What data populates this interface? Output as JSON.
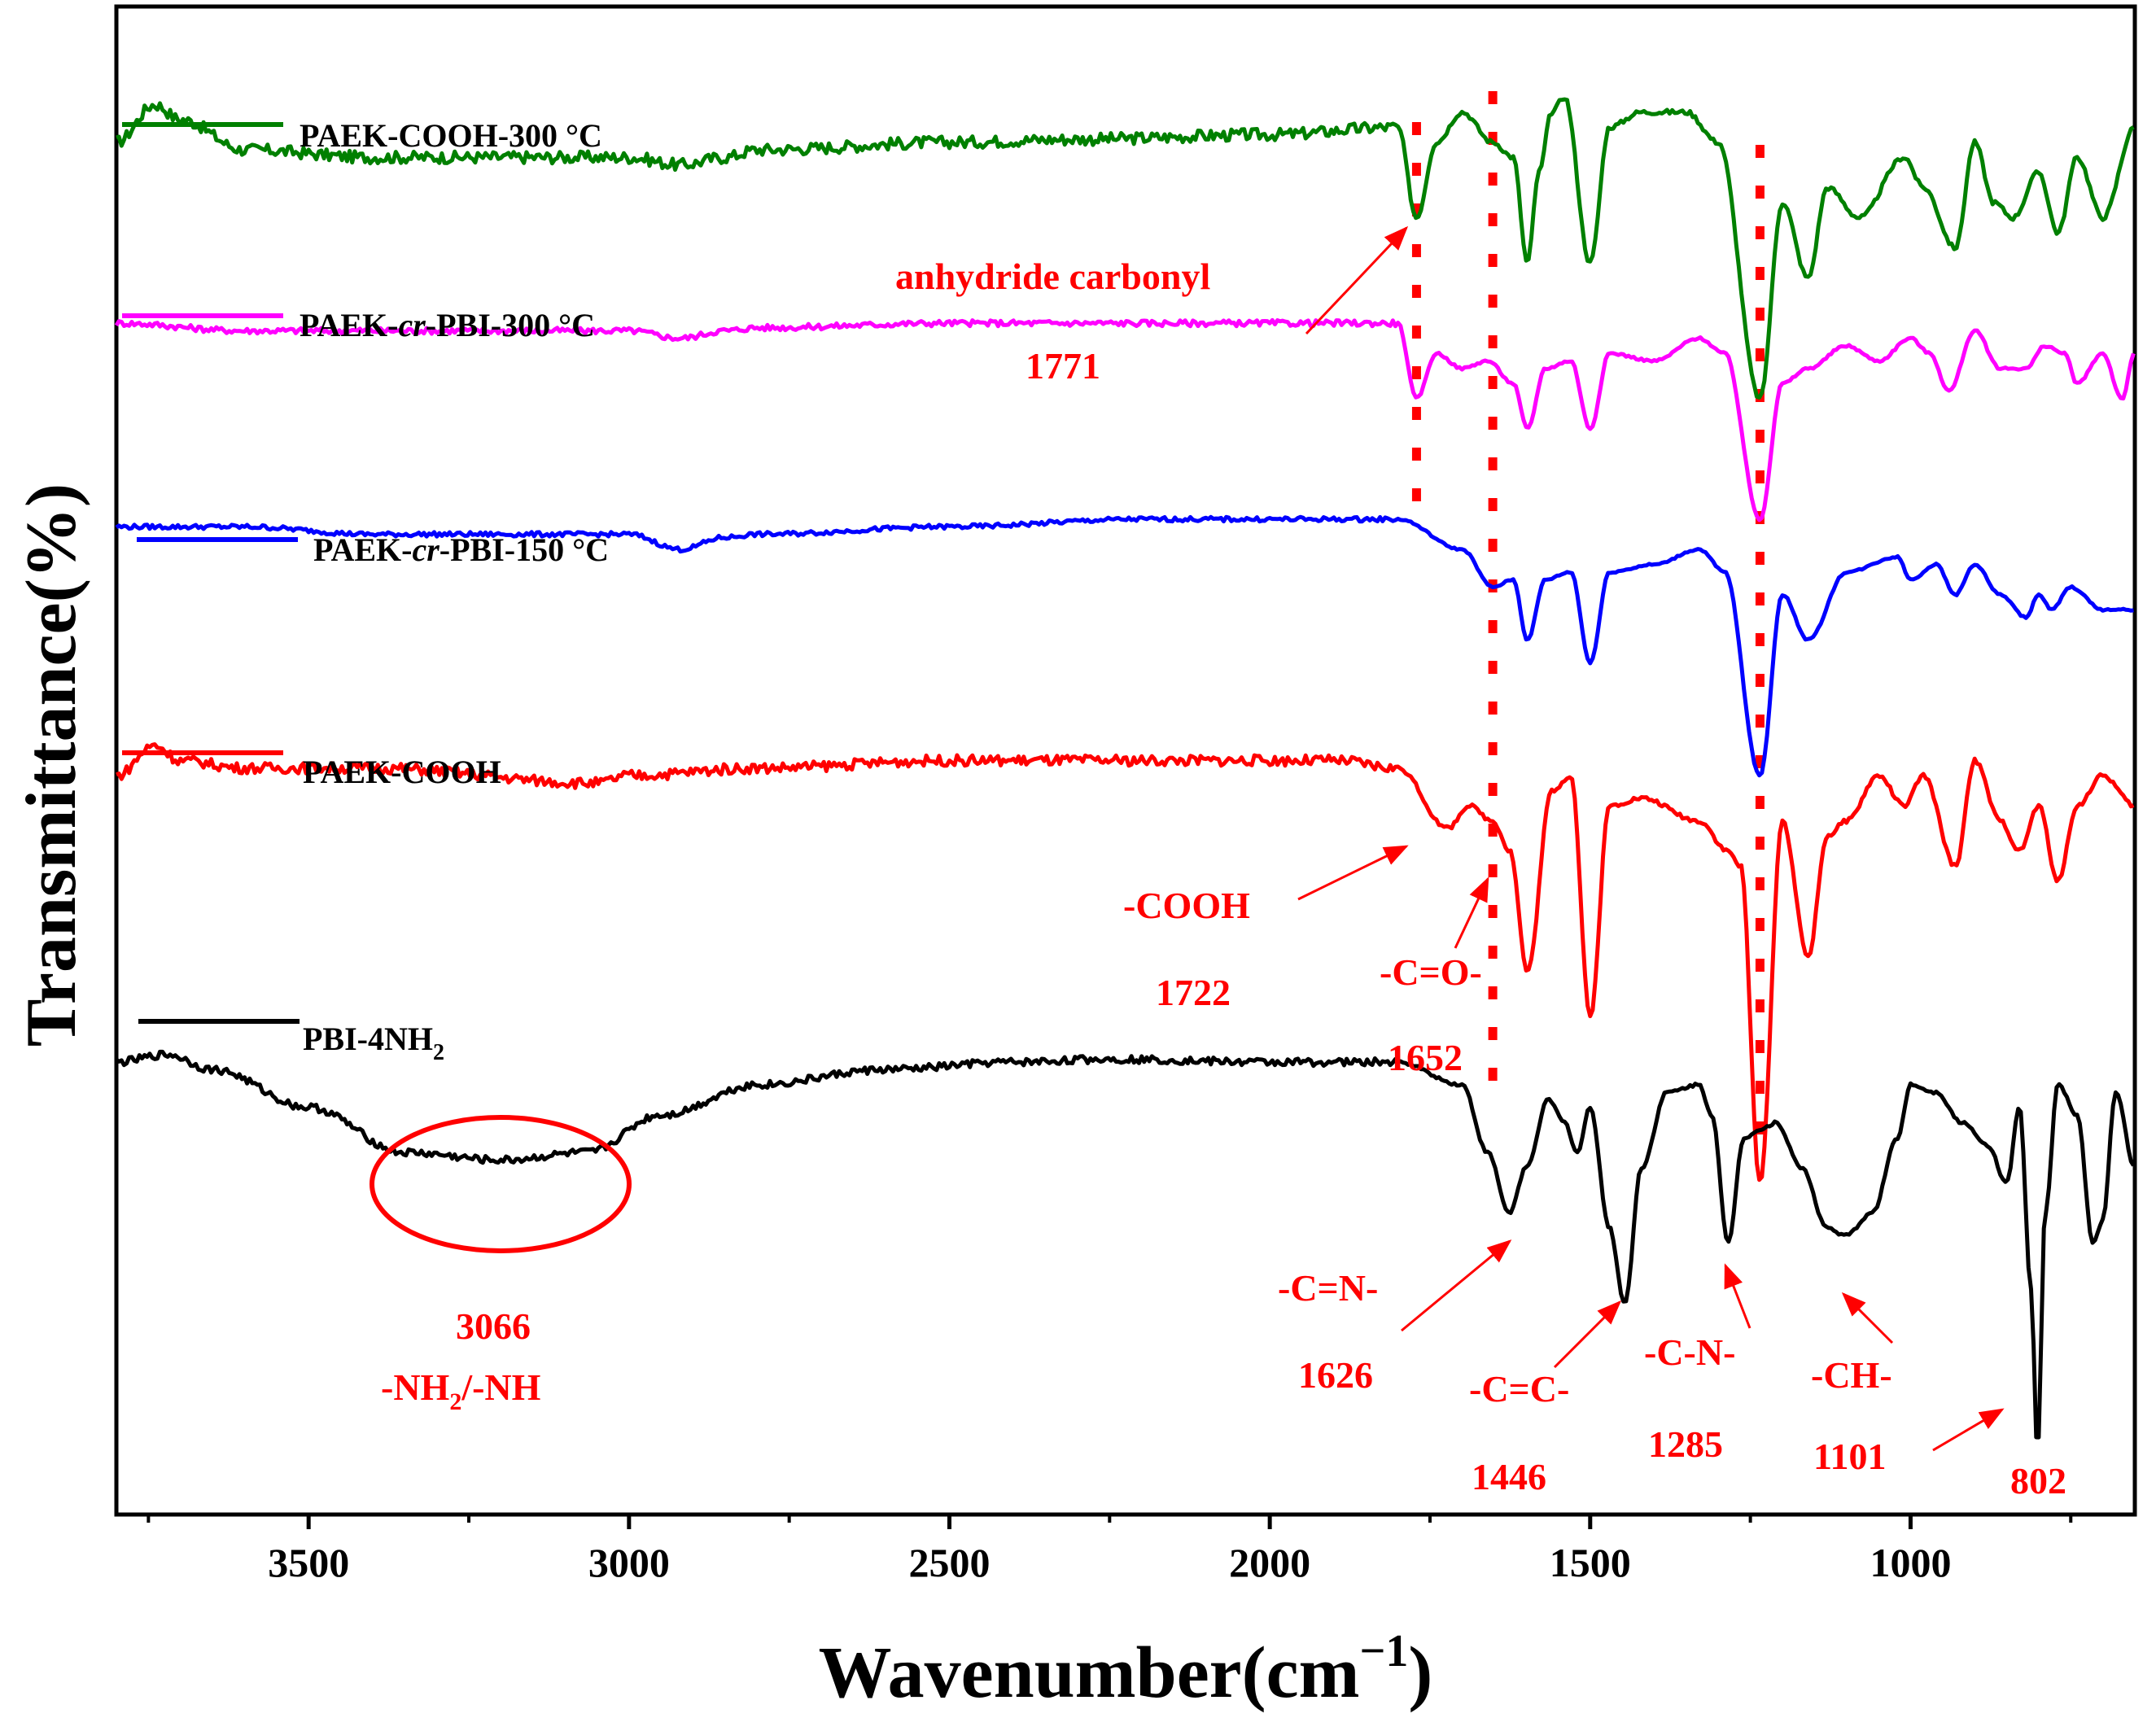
{
  "chart_data": {
    "type": "line",
    "title": "",
    "xlabel": "Wavenumber(cm",
    "xlabel_sup": "−1",
    "xlabel_close": ")",
    "ylabel": "Transmittance(%)",
    "xlim": [
      3800,
      650
    ],
    "x_reversed": true,
    "yticks_shown": false,
    "xticks": [
      3500,
      3000,
      2500,
      2000,
      1500,
      1000
    ],
    "series": [
      {
        "name": "PAEK-COOH-300 °C",
        "label_main": "PAEK-COOH-300 °C",
        "color": "#008000",
        "baseline": 0.92,
        "noise": 0.008,
        "points": [
          [
            3800,
            0.91
          ],
          [
            3740,
            0.935
          ],
          [
            3700,
            0.925
          ],
          [
            3600,
            0.905
          ],
          [
            3400,
            0.9
          ],
          [
            3200,
            0.9
          ],
          [
            3000,
            0.9
          ],
          [
            2920,
            0.895
          ],
          [
            2850,
            0.9
          ],
          [
            2800,
            0.905
          ],
          [
            2500,
            0.91
          ],
          [
            2300,
            0.912
          ],
          [
            2000,
            0.915
          ],
          [
            1800,
            0.92
          ],
          [
            1771,
            0.86
          ],
          [
            1740,
            0.91
          ],
          [
            1700,
            0.93
          ],
          [
            1652,
            0.91
          ],
          [
            1620,
            0.9
          ],
          [
            1598,
            0.83
          ],
          [
            1580,
            0.89
          ],
          [
            1560,
            0.93
          ],
          [
            1540,
            0.94
          ],
          [
            1500,
            0.83
          ],
          [
            1470,
            0.92
          ],
          [
            1420,
            0.93
          ],
          [
            1350,
            0.93
          ],
          [
            1300,
            0.91
          ],
          [
            1235,
            0.74
          ],
          [
            1200,
            0.87
          ],
          [
            1160,
            0.82
          ],
          [
            1130,
            0.88
          ],
          [
            1080,
            0.86
          ],
          [
            1010,
            0.9
          ],
          [
            980,
            0.88
          ],
          [
            930,
            0.84
          ],
          [
            900,
            0.91
          ],
          [
            870,
            0.87
          ],
          [
            840,
            0.86
          ],
          [
            800,
            0.89
          ],
          [
            770,
            0.85
          ],
          [
            740,
            0.9
          ],
          [
            700,
            0.86
          ],
          [
            650,
            0.92
          ]
        ]
      },
      {
        "name": "PAEK-cr-PBI-300 °C",
        "label_pre": "PAEK-",
        "label_it": "cr",
        "label_post": "-PBI-300 °C",
        "color": "#ff00ff",
        "baseline": 0.8,
        "noise": 0.004,
        "points": [
          [
            3800,
            0.79
          ],
          [
            3600,
            0.785
          ],
          [
            3400,
            0.785
          ],
          [
            3200,
            0.785
          ],
          [
            3000,
            0.785
          ],
          [
            2920,
            0.78
          ],
          [
            2850,
            0.785
          ],
          [
            2800,
            0.787
          ],
          [
            2500,
            0.79
          ],
          [
            2200,
            0.79
          ],
          [
            1900,
            0.79
          ],
          [
            1800,
            0.79
          ],
          [
            1771,
            0.74
          ],
          [
            1740,
            0.77
          ],
          [
            1700,
            0.76
          ],
          [
            1660,
            0.765
          ],
          [
            1620,
            0.75
          ],
          [
            1598,
            0.72
          ],
          [
            1570,
            0.76
          ],
          [
            1530,
            0.765
          ],
          [
            1500,
            0.72
          ],
          [
            1470,
            0.77
          ],
          [
            1400,
            0.765
          ],
          [
            1330,
            0.78
          ],
          [
            1290,
            0.77
          ],
          [
            1235,
            0.66
          ],
          [
            1200,
            0.75
          ],
          [
            1160,
            0.76
          ],
          [
            1100,
            0.775
          ],
          [
            1050,
            0.765
          ],
          [
            1000,
            0.78
          ],
          [
            970,
            0.77
          ],
          [
            940,
            0.745
          ],
          [
            900,
            0.785
          ],
          [
            860,
            0.76
          ],
          [
            820,
            0.76
          ],
          [
            790,
            0.775
          ],
          [
            760,
            0.77
          ],
          [
            740,
            0.75
          ],
          [
            700,
            0.77
          ],
          [
            670,
            0.74
          ],
          [
            650,
            0.77
          ]
        ]
      },
      {
        "name": "PAEK-cr-PBI-150 °C",
        "label_pre": "PAEK-",
        "label_it": "cr",
        "label_post": "-PBI-150 °C",
        "color": "#0000ff",
        "baseline": 0.66,
        "noise": 0.003,
        "points": [
          [
            3800,
            0.655
          ],
          [
            3600,
            0.655
          ],
          [
            3400,
            0.65
          ],
          [
            3000,
            0.65
          ],
          [
            2920,
            0.64
          ],
          [
            2850,
            0.648
          ],
          [
            2800,
            0.65
          ],
          [
            2500,
            0.655
          ],
          [
            2200,
            0.66
          ],
          [
            1900,
            0.66
          ],
          [
            1800,
            0.66
          ],
          [
            1700,
            0.64
          ],
          [
            1652,
            0.615
          ],
          [
            1620,
            0.62
          ],
          [
            1598,
            0.58
          ],
          [
            1570,
            0.62
          ],
          [
            1530,
            0.625
          ],
          [
            1500,
            0.565
          ],
          [
            1470,
            0.625
          ],
          [
            1400,
            0.63
          ],
          [
            1330,
            0.64
          ],
          [
            1290,
            0.625
          ],
          [
            1235,
            0.49
          ],
          [
            1200,
            0.61
          ],
          [
            1160,
            0.58
          ],
          [
            1100,
            0.625
          ],
          [
            1020,
            0.635
          ],
          [
            1000,
            0.62
          ],
          [
            960,
            0.63
          ],
          [
            930,
            0.61
          ],
          [
            900,
            0.63
          ],
          [
            860,
            0.61
          ],
          [
            820,
            0.595
          ],
          [
            800,
            0.61
          ],
          [
            780,
            0.6
          ],
          [
            750,
            0.615
          ],
          [
            700,
            0.6
          ],
          [
            650,
            0.6
          ]
        ]
      },
      {
        "name": "PAEK-COOH",
        "label_main": "PAEK-COOH",
        "color": "#ff0000",
        "baseline": 0.5,
        "noise": 0.007,
        "points": [
          [
            3800,
            0.49
          ],
          [
            3740,
            0.51
          ],
          [
            3700,
            0.5
          ],
          [
            3600,
            0.495
          ],
          [
            3400,
            0.495
          ],
          [
            3050,
            0.485
          ],
          [
            3000,
            0.49
          ],
          [
            2800,
            0.495
          ],
          [
            2500,
            0.5
          ],
          [
            2200,
            0.5
          ],
          [
            1900,
            0.5
          ],
          [
            1800,
            0.495
          ],
          [
            1722,
            0.455
          ],
          [
            1690,
            0.47
          ],
          [
            1652,
            0.46
          ],
          [
            1625,
            0.44
          ],
          [
            1598,
            0.36
          ],
          [
            1560,
            0.48
          ],
          [
            1530,
            0.49
          ],
          [
            1500,
            0.33
          ],
          [
            1470,
            0.47
          ],
          [
            1420,
            0.475
          ],
          [
            1330,
            0.46
          ],
          [
            1285,
            0.44
          ],
          [
            1265,
            0.43
          ],
          [
            1235,
            0.22
          ],
          [
            1200,
            0.46
          ],
          [
            1160,
            0.37
          ],
          [
            1130,
            0.45
          ],
          [
            1100,
            0.46
          ],
          [
            1050,
            0.49
          ],
          [
            1010,
            0.47
          ],
          [
            980,
            0.49
          ],
          [
            930,
            0.43
          ],
          [
            900,
            0.5
          ],
          [
            860,
            0.46
          ],
          [
            830,
            0.44
          ],
          [
            800,
            0.47
          ],
          [
            770,
            0.42
          ],
          [
            740,
            0.47
          ],
          [
            700,
            0.49
          ],
          [
            650,
            0.47
          ]
        ]
      },
      {
        "name": "PBI-4NH2",
        "label_main": "PBI-4NH",
        "label_sub": "2",
        "color": "#000000",
        "baseline": 0.3,
        "noise": 0.005,
        "points": [
          [
            3800,
            0.3
          ],
          [
            3720,
            0.305
          ],
          [
            3650,
            0.295
          ],
          [
            3500,
            0.27
          ],
          [
            3350,
            0.24
          ],
          [
            3200,
            0.235
          ],
          [
            3066,
            0.24
          ],
          [
            2950,
            0.265
          ],
          [
            2800,
            0.285
          ],
          [
            2600,
            0.295
          ],
          [
            2400,
            0.3
          ],
          [
            2250,
            0.302
          ],
          [
            2000,
            0.3
          ],
          [
            1800,
            0.3
          ],
          [
            1700,
            0.285
          ],
          [
            1660,
            0.24
          ],
          [
            1626,
            0.2
          ],
          [
            1600,
            0.23
          ],
          [
            1565,
            0.275
          ],
          [
            1540,
            0.26
          ],
          [
            1520,
            0.24
          ],
          [
            1500,
            0.27
          ],
          [
            1470,
            0.19
          ],
          [
            1446,
            0.14
          ],
          [
            1420,
            0.23
          ],
          [
            1380,
            0.28
          ],
          [
            1330,
            0.285
          ],
          [
            1310,
            0.265
          ],
          [
            1285,
            0.18
          ],
          [
            1260,
            0.25
          ],
          [
            1235,
            0.255
          ],
          [
            1210,
            0.26
          ],
          [
            1170,
            0.23
          ],
          [
            1130,
            0.19
          ],
          [
            1101,
            0.185
          ],
          [
            1060,
            0.2
          ],
          [
            1020,
            0.25
          ],
          [
            1000,
            0.285
          ],
          [
            960,
            0.28
          ],
          [
            920,
            0.26
          ],
          [
            880,
            0.245
          ],
          [
            850,
            0.22
          ],
          [
            830,
            0.27
          ],
          [
            812,
            0.15
          ],
          [
            802,
            0.04
          ],
          [
            790,
            0.2
          ],
          [
            770,
            0.285
          ],
          [
            740,
            0.265
          ],
          [
            715,
            0.18
          ],
          [
            700,
            0.195
          ],
          [
            680,
            0.28
          ],
          [
            650,
            0.23
          ]
        ]
      }
    ],
    "guide_lines": [
      1771,
      1652,
      1235
    ],
    "annotations": {
      "anhydride_label": "anhydride carbonyl",
      "anhydride_value": "1771",
      "cooh_label": "-COOH",
      "cooh_value": "1722",
      "co_label": "-C=O-",
      "co_value": "1652",
      "cn_double_label": "-C=N-",
      "cn_double_value": "1626",
      "cc_label": "-C=C-",
      "cc_value": "1446",
      "cn_label": "-C-N-",
      "cn_value": "1285",
      "ch_label": "-CH-",
      "ch_value": "1101",
      "peak802_value": "802",
      "nh_value": "3066",
      "nh_label_a": "-NH",
      "nh_label_sub": "2",
      "nh_label_b": "/-NH"
    }
  }
}
